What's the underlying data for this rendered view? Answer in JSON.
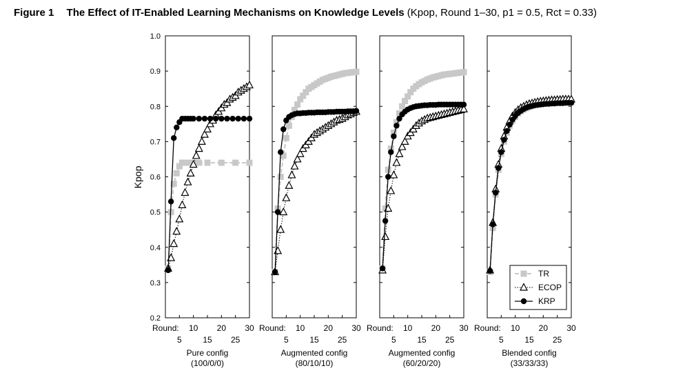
{
  "figure": {
    "label": "Figure 1",
    "title": "The Effect of IT-Enabled Learning Mechanisms on Knowledge Levels",
    "params": "(Kpop, Round 1–30, p1 = 0.5, Rct = 0.33)"
  },
  "colors": {
    "TR": "#c8c8c8",
    "ECOP": "#000000",
    "KRP": "#000000"
  },
  "chart_data": {
    "type": "line",
    "ylabel": "Kpop",
    "ylim": [
      0.2,
      1.0
    ],
    "yticks": [
      "0.2",
      "0.3",
      "0.4",
      "0.5",
      "0.6",
      "0.7",
      "0.8",
      "0.9",
      "1.0"
    ],
    "xlim": [
      0,
      30
    ],
    "x_label_prefix": "Round:",
    "xticks_upper": [
      "10",
      "20",
      "30"
    ],
    "xticks_lower": [
      "5",
      "15",
      "25"
    ],
    "legend": {
      "position": "bottom-right of last panel",
      "entries": [
        {
          "name": "TR",
          "marker": "square-gray"
        },
        {
          "name": "ECOP",
          "marker": "triangle-open"
        },
        {
          "name": "KRP",
          "marker": "circle-filled"
        }
      ]
    },
    "panels": [
      {
        "label": "Pure config",
        "sublabel": "(100/0/0)",
        "series": [
          {
            "name": "TR",
            "x": [
              1,
              2,
              3,
              4,
              5,
              6,
              7,
              8,
              10,
              12,
              15,
              20,
              25,
              30
            ],
            "y": [
              0.34,
              0.5,
              0.58,
              0.61,
              0.63,
              0.64,
              0.64,
              0.64,
              0.64,
              0.64,
              0.64,
              0.64,
              0.64,
              0.64
            ]
          },
          {
            "name": "ECOP",
            "x": [
              1,
              2,
              3,
              4,
              5,
              6,
              7,
              8,
              9,
              10,
              11,
              12,
              13,
              14,
              15,
              16,
              17,
              18,
              19,
              20,
              21,
              22,
              23,
              24,
              25,
              26,
              27,
              28,
              29,
              30
            ],
            "y": [
              0.34,
              0.37,
              0.41,
              0.445,
              0.48,
              0.52,
              0.555,
              0.585,
              0.61,
              0.635,
              0.66,
              0.68,
              0.7,
              0.72,
              0.735,
              0.75,
              0.76,
              0.775,
              0.785,
              0.795,
              0.805,
              0.81,
              0.82,
              0.825,
              0.83,
              0.84,
              0.845,
              0.85,
              0.855,
              0.86
            ]
          },
          {
            "name": "KRP",
            "x": [
              1,
              2,
              3,
              4,
              5,
              6,
              7,
              8,
              9,
              10,
              12,
              14,
              16,
              18,
              20,
              22,
              24,
              26,
              28,
              30
            ],
            "y": [
              0.335,
              0.53,
              0.71,
              0.74,
              0.755,
              0.765,
              0.765,
              0.765,
              0.765,
              0.765,
              0.765,
              0.765,
              0.765,
              0.765,
              0.765,
              0.765,
              0.765,
              0.765,
              0.765,
              0.765
            ]
          }
        ]
      },
      {
        "label": "Augmented config",
        "sublabel": "(80/10/10)",
        "series": [
          {
            "name": "TR",
            "x": [
              1,
              2,
              3,
              4,
              5,
              6,
              7,
              8,
              9,
              10,
              11,
              12,
              13,
              14,
              15,
              16,
              17,
              18,
              19,
              20,
              21,
              22,
              23,
              24,
              25,
              26,
              27,
              28,
              29,
              30
            ],
            "y": [
              0.33,
              0.51,
              0.6,
              0.66,
              0.71,
              0.745,
              0.77,
              0.79,
              0.805,
              0.82,
              0.83,
              0.84,
              0.85,
              0.855,
              0.86,
              0.865,
              0.87,
              0.875,
              0.878,
              0.881,
              0.884,
              0.886,
              0.888,
              0.89,
              0.892,
              0.894,
              0.895,
              0.896,
              0.897,
              0.898
            ]
          },
          {
            "name": "ECOP",
            "x": [
              1,
              2,
              3,
              4,
              5,
              6,
              7,
              8,
              9,
              10,
              11,
              12,
              13,
              14,
              15,
              16,
              17,
              18,
              19,
              20,
              21,
              22,
              23,
              24,
              25,
              26,
              27,
              28,
              29,
              30
            ],
            "y": [
              0.33,
              0.39,
              0.45,
              0.5,
              0.54,
              0.575,
              0.605,
              0.63,
              0.65,
              0.665,
              0.68,
              0.69,
              0.7,
              0.71,
              0.72,
              0.725,
              0.73,
              0.735,
              0.74,
              0.745,
              0.75,
              0.755,
              0.76,
              0.762,
              0.765,
              0.77,
              0.775,
              0.778,
              0.782,
              0.785
            ]
          },
          {
            "name": "KRP",
            "x": [
              1,
              2,
              3,
              4,
              5,
              6,
              7,
              8,
              9,
              10,
              11,
              12,
              13,
              14,
              15,
              16,
              17,
              18,
              19,
              20,
              21,
              22,
              23,
              24,
              25,
              26,
              27,
              28,
              29,
              30
            ],
            "y": [
              0.33,
              0.5,
              0.67,
              0.735,
              0.76,
              0.77,
              0.775,
              0.778,
              0.78,
              0.78,
              0.781,
              0.781,
              0.782,
              0.782,
              0.782,
              0.783,
              0.783,
              0.783,
              0.783,
              0.784,
              0.784,
              0.784,
              0.785,
              0.785,
              0.785,
              0.785,
              0.786,
              0.786,
              0.786,
              0.787
            ]
          }
        ]
      },
      {
        "label": "Augmented config",
        "sublabel": "(60/20/20)",
        "series": [
          {
            "name": "TR",
            "x": [
              1,
              2,
              3,
              4,
              5,
              6,
              7,
              8,
              9,
              10,
              11,
              12,
              13,
              14,
              15,
              16,
              17,
              18,
              19,
              20,
              21,
              22,
              23,
              24,
              25,
              26,
              27,
              28,
              29,
              30
            ],
            "y": [
              0.34,
              0.51,
              0.62,
              0.68,
              0.725,
              0.755,
              0.78,
              0.8,
              0.815,
              0.828,
              0.84,
              0.85,
              0.857,
              0.863,
              0.868,
              0.872,
              0.876,
              0.879,
              0.882,
              0.884,
              0.886,
              0.888,
              0.89,
              0.891,
              0.892,
              0.893,
              0.894,
              0.895,
              0.896,
              0.897
            ]
          },
          {
            "name": "ECOP",
            "x": [
              1,
              2,
              3,
              4,
              5,
              6,
              7,
              8,
              9,
              10,
              11,
              12,
              13,
              14,
              15,
              16,
              17,
              18,
              19,
              20,
              21,
              22,
              23,
              24,
              25,
              26,
              27,
              28,
              29,
              30
            ],
            "y": [
              0.335,
              0.43,
              0.51,
              0.56,
              0.605,
              0.64,
              0.665,
              0.685,
              0.7,
              0.715,
              0.725,
              0.735,
              0.745,
              0.752,
              0.758,
              0.762,
              0.766,
              0.768,
              0.77,
              0.772,
              0.774,
              0.776,
              0.778,
              0.78,
              0.782,
              0.784,
              0.786,
              0.788,
              0.79,
              0.792
            ]
          },
          {
            "name": "KRP",
            "x": [
              1,
              2,
              3,
              4,
              5,
              6,
              7,
              8,
              9,
              10,
              11,
              12,
              13,
              14,
              15,
              16,
              17,
              18,
              19,
              20,
              21,
              22,
              23,
              24,
              25,
              26,
              27,
              28,
              29,
              30
            ],
            "y": [
              0.34,
              0.475,
              0.6,
              0.67,
              0.715,
              0.745,
              0.765,
              0.777,
              0.785,
              0.791,
              0.795,
              0.798,
              0.8,
              0.801,
              0.802,
              0.803,
              0.803,
              0.804,
              0.804,
              0.804,
              0.805,
              0.805,
              0.805,
              0.805,
              0.805,
              0.805,
              0.805,
              0.805,
              0.805,
              0.805
            ]
          }
        ]
      },
      {
        "label": "Blended config",
        "sublabel": "(33/33/33)",
        "series": [
          {
            "name": "TR",
            "x": [
              1,
              2,
              3,
              4,
              5,
              6,
              7,
              8,
              9,
              10,
              11,
              12,
              13,
              14,
              15,
              16,
              17,
              18,
              19,
              20,
              21,
              22,
              23,
              24,
              25,
              26,
              27,
              28,
              29,
              30
            ],
            "y": [
              0.33,
              0.455,
              0.55,
              0.62,
              0.665,
              0.7,
              0.725,
              0.745,
              0.76,
              0.77,
              0.78,
              0.786,
              0.791,
              0.795,
              0.798,
              0.801,
              0.803,
              0.805,
              0.806,
              0.807,
              0.808,
              0.809,
              0.81,
              0.81,
              0.811,
              0.811,
              0.812,
              0.812,
              0.812,
              0.812
            ]
          },
          {
            "name": "ECOP",
            "x": [
              1,
              2,
              3,
              4,
              5,
              6,
              7,
              8,
              9,
              10,
              11,
              12,
              13,
              14,
              15,
              16,
              17,
              18,
              19,
              20,
              21,
              22,
              23,
              24,
              25,
              26,
              27,
              28,
              29,
              30
            ],
            "y": [
              0.335,
              0.47,
              0.565,
              0.635,
              0.68,
              0.715,
              0.74,
              0.758,
              0.772,
              0.782,
              0.79,
              0.796,
              0.8,
              0.804,
              0.807,
              0.809,
              0.811,
              0.813,
              0.814,
              0.815,
              0.816,
              0.817,
              0.818,
              0.818,
              0.819,
              0.819,
              0.82,
              0.82,
              0.82,
              0.82
            ]
          },
          {
            "name": "KRP",
            "x": [
              1,
              2,
              3,
              4,
              5,
              6,
              7,
              8,
              9,
              10,
              11,
              12,
              13,
              14,
              15,
              16,
              17,
              18,
              19,
              20,
              21,
              22,
              23,
              24,
              25,
              26,
              27,
              28,
              29,
              30
            ],
            "y": [
              0.333,
              0.465,
              0.555,
              0.625,
              0.67,
              0.705,
              0.73,
              0.748,
              0.762,
              0.773,
              0.781,
              0.787,
              0.792,
              0.796,
              0.799,
              0.801,
              0.803,
              0.804,
              0.805,
              0.806,
              0.807,
              0.807,
              0.808,
              0.808,
              0.809,
              0.809,
              0.809,
              0.81,
              0.81,
              0.81
            ]
          }
        ]
      }
    ]
  }
}
